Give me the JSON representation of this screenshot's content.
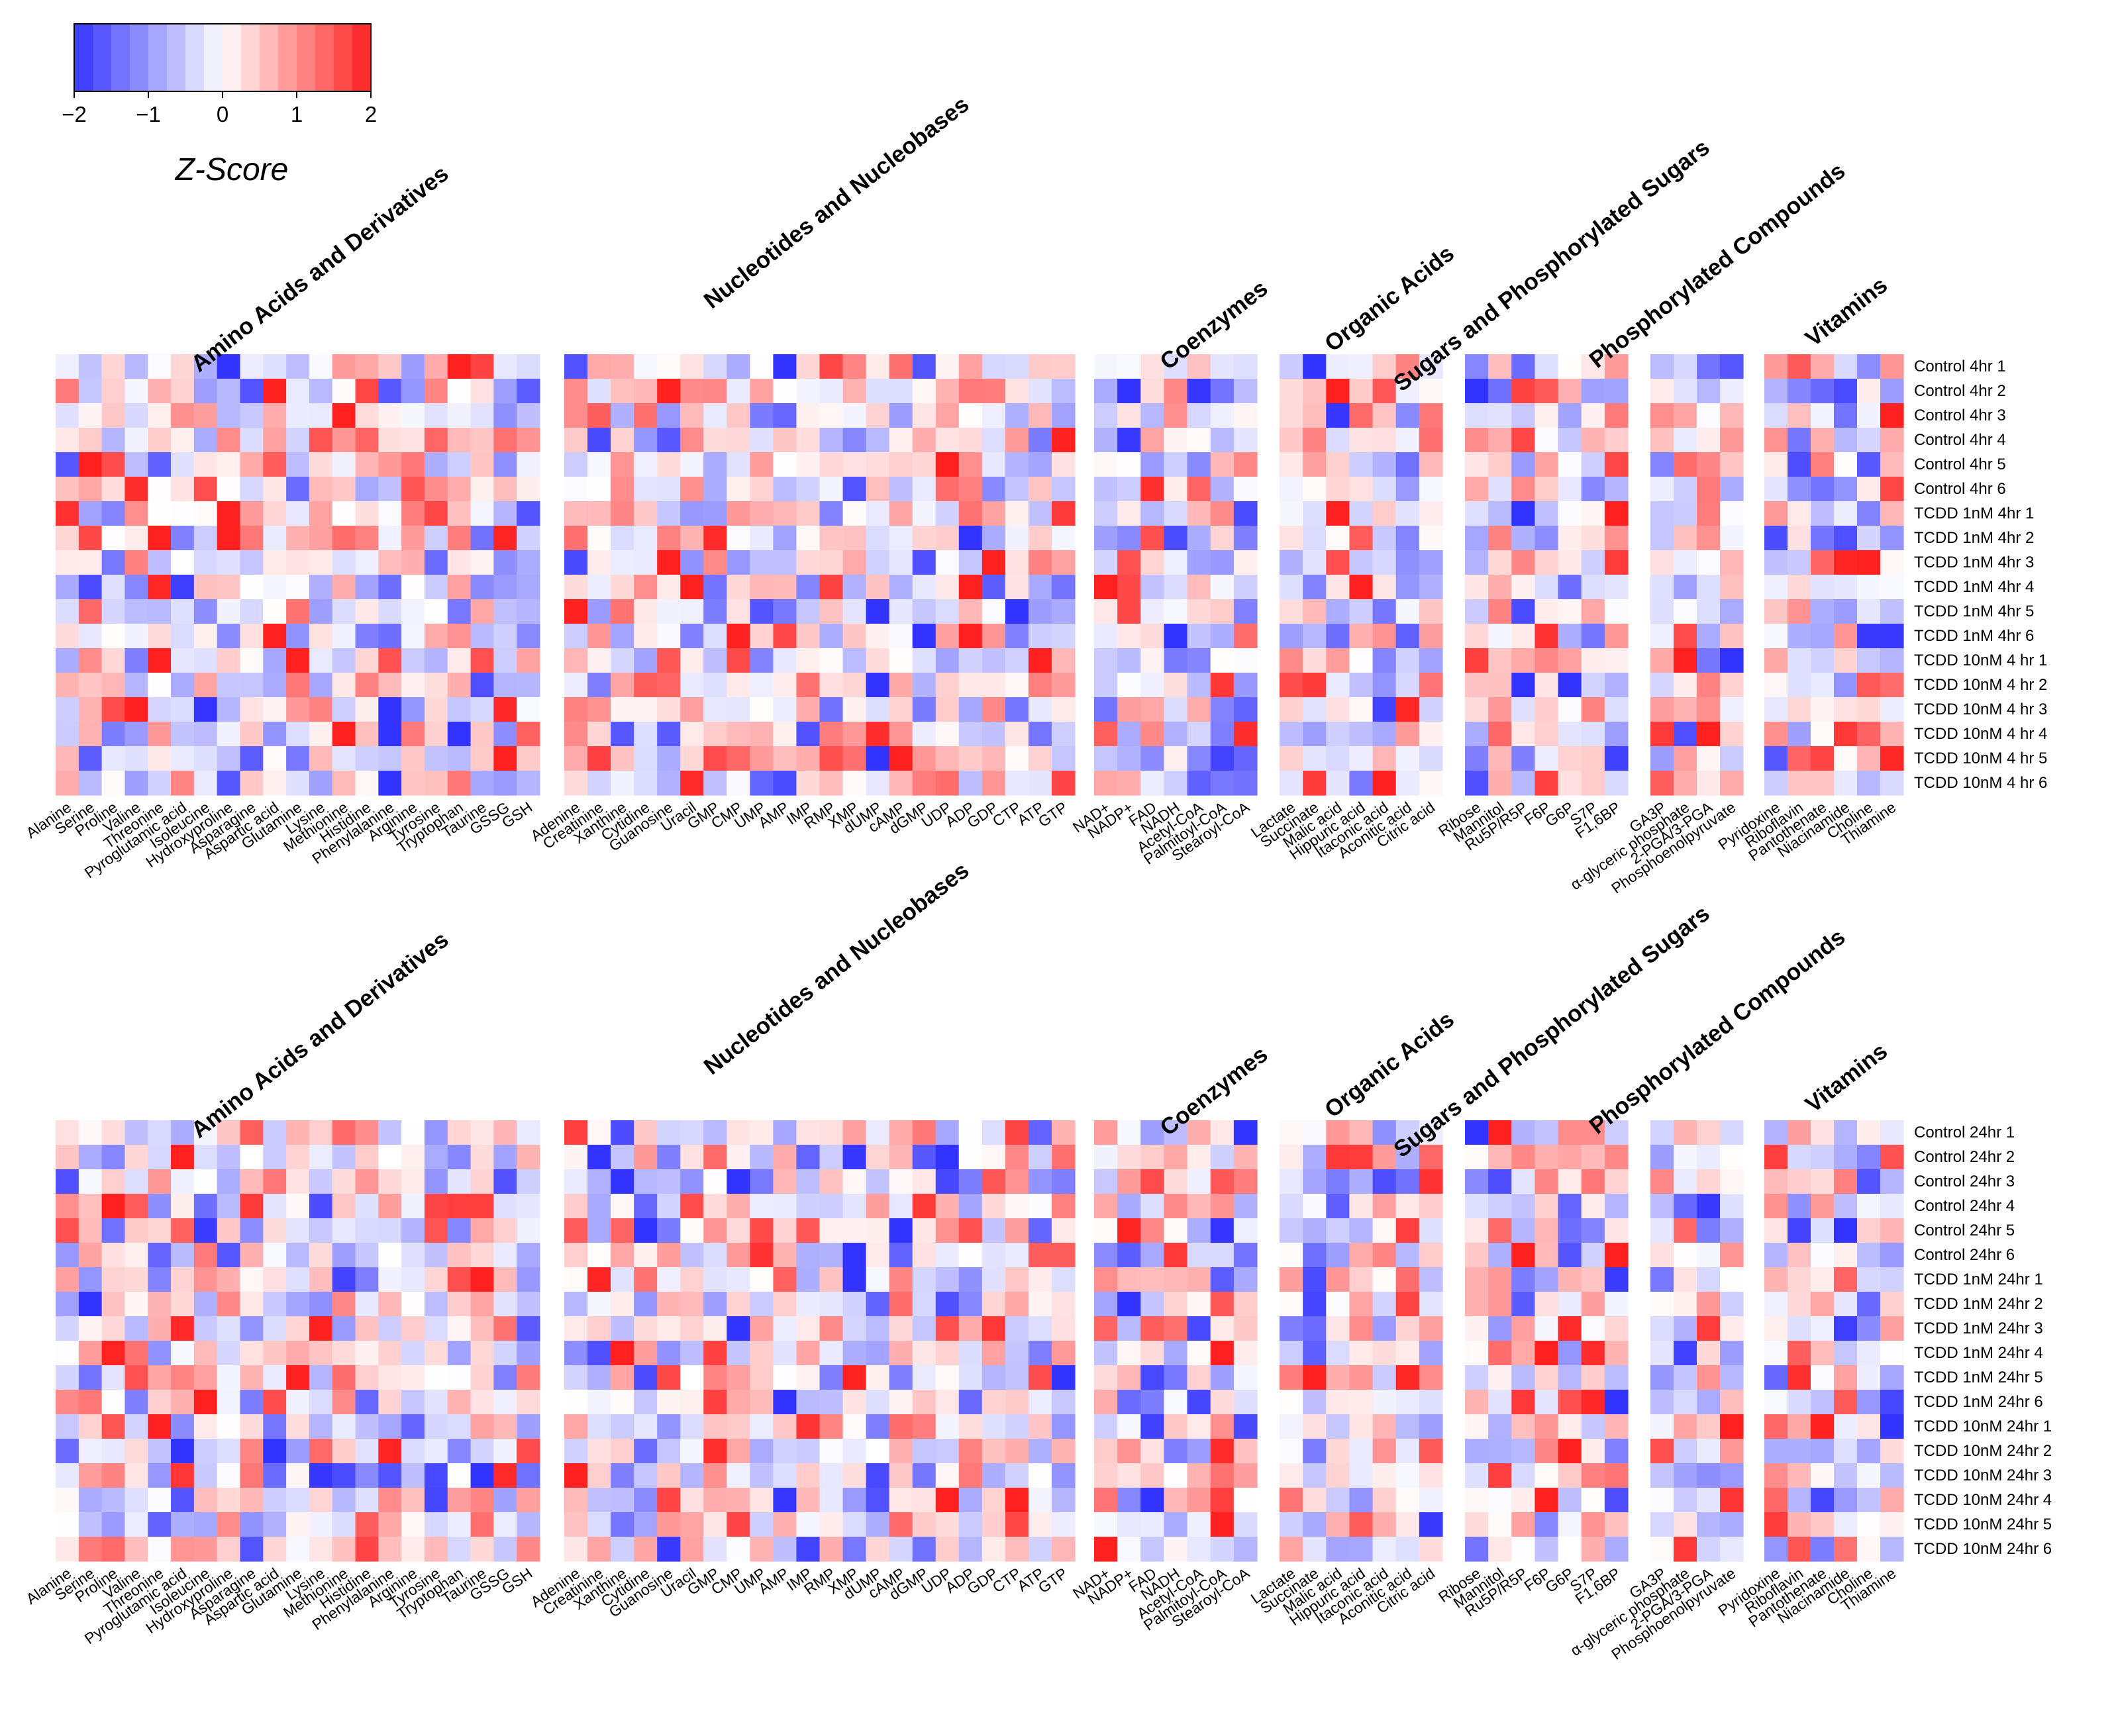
{
  "chart_data": {
    "type": "heatmap",
    "colorbar": {
      "title": "Z-Score",
      "ticks": [
        "−2",
        "−1",
        "0",
        "1",
        "2"
      ],
      "range": [
        -2,
        2
      ],
      "low_color": "#3333ff",
      "mid_color": "#ffffff",
      "high_color": "#ff2020"
    },
    "groups": [
      {
        "title": "Amino Acids and Derivatives",
        "columns": [
          "Alanine",
          "Serine",
          "Proline",
          "Valine",
          "Threonine",
          "Pyroglutamic acid",
          "Isoleucine",
          "Hydroxyproline",
          "Asparagine",
          "Aspartic acid",
          "Glutamine",
          "Lysine",
          "Methionine",
          "Histidine",
          "Phenylalanine",
          "Arginine",
          "Tyrosine",
          "Tryptophan",
          "Taurine",
          "GSSG",
          "GSH"
        ]
      },
      {
        "title": "Nucleotides and Nucleobases",
        "columns": [
          "Adenine",
          "Creatinine",
          "Xanthine",
          "Cytidine",
          "Guanosine",
          "Uracil",
          "GMP",
          "CMP",
          "UMP",
          "AMP",
          "IMP",
          "RMP",
          "XMP",
          "dUMP",
          "cAMP",
          "dGMP",
          "UDP",
          "ADP",
          "GDP",
          "CTP",
          "ATP",
          "GTP"
        ]
      },
      {
        "title": "Coenzymes",
        "columns": [
          "NAD+",
          "NADP+",
          "FAD",
          "NADH",
          "Acetyl-CoA",
          "Palmitoyl-CoA",
          "Stearoyl-CoA"
        ]
      },
      {
        "title": "Organic Acids",
        "columns": [
          "Lactate",
          "Succinate",
          "Malic acid",
          "Hippuric acid",
          "Itaconic acid",
          "Aconitic acid",
          "Citric acid"
        ]
      },
      {
        "title": "Sugars and Phosphorylated Sugars",
        "columns": [
          "Ribose",
          "Mannitol",
          "Ru5P/R5P",
          "F6P",
          "G6P",
          "S7P",
          "F1,6BP"
        ]
      },
      {
        "title": "Phosphorylated Compounds",
        "columns": [
          "GA3P",
          "α-glyceric phosphate",
          "2-PGA/3-PGA",
          "Phosphoenolpyruvate"
        ]
      },
      {
        "title": "Vitamins",
        "columns": [
          "Pyridoxine",
          "Riboflavin",
          "Pantothenate",
          "Niacinamide",
          "Choline",
          "Thiamine"
        ]
      }
    ],
    "panels": [
      {
        "name": "4 hr",
        "rows": [
          "Control 4hr 1",
          "Control 4hr 2",
          "Control 4hr 3",
          "Control 4hr 4",
          "Control 4hr 5",
          "Control 4hr 6",
          "TCDD 1nM 4hr 1",
          "TCDD 1nM 4hr 2",
          "TCDD 1nM 4hr 3",
          "TCDD 1nM 4hr 4",
          "TCDD 1nM 4hr 5",
          "TCDD 1nM 4hr 6",
          "TCDD 10nM 4 hr 1",
          "TCDD 10nM 4 hr 2",
          "TCDD 10nM 4 hr 3",
          "TCDD 10nM 4 hr 4",
          "TCDD 10nM 4 hr 5",
          "TCDD 10nM 4 hr 6"
        ],
        "seed": 17
      },
      {
        "name": "24 hr",
        "rows": [
          "Control 24hr 1",
          "Control 24hr 2",
          "Control 24hr 3",
          "Control 24hr 4",
          "Control 24hr 5",
          "Control 24hr 6",
          "TCDD 1nM 24hr 1",
          "TCDD 1nM 24hr 2",
          "TCDD 1nM 24hr 3",
          "TCDD 1nM 24hr 4",
          "TCDD 1nM 24hr 5",
          "TCDD 1nM 24hr 6",
          "TCDD 10nM 24hr 1",
          "TCDD 10nM 24hr 2",
          "TCDD 10nM 24hr 3",
          "TCDD 10nM 24hr 4",
          "TCDD 10nM 24hr 5",
          "TCDD 10nM 24hr 6"
        ],
        "seed": 91
      }
    ]
  }
}
